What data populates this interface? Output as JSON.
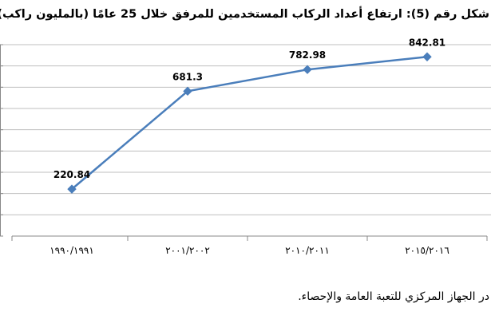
{
  "chart_data": {
    "type": "line",
    "title": "شكل رقم (5): ارتفاع أعداد الركاب المستخدمين للمرفق خلال 25 عامًا (بالمليون راكب)",
    "categories": [
      "١٩٩٠/١٩٩١",
      "٢٠٠١/٢٠٠٢",
      "٢٠١٠/٢٠١١",
      "٢٠١٥/٢٠١٦"
    ],
    "series": [
      {
        "values": [
          220.84,
          681.3,
          782.98,
          842.81
        ],
        "labels": [
          "220.84",
          "681.3",
          "782.98",
          "842.81"
        ]
      }
    ],
    "ylim": [
      0,
      900
    ],
    "grid": true,
    "line_color": "#4a7ebb",
    "grid_color": "#bfbfbf",
    "axis_color": "#888888"
  },
  "source_note": "در الجهاز المركزي للتعبة العامة والإحصاء."
}
